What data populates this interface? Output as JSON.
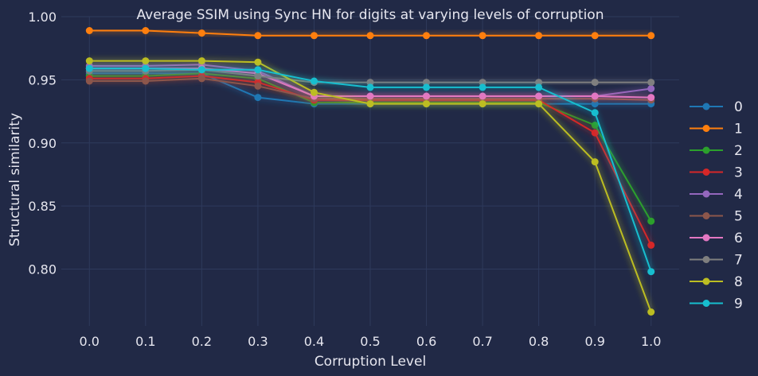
{
  "chart_data": {
    "type": "line",
    "title": "Average SSIM using Sync HN for digits at varying levels of corruption",
    "xlabel": "Corruption Level",
    "ylabel": "Structural similarity",
    "x": [
      0.0,
      0.1,
      0.2,
      0.3,
      0.4,
      0.5,
      0.6,
      0.7,
      0.8,
      0.9,
      1.0
    ],
    "x_tick_labels": [
      "0.0",
      "0.1",
      "0.2",
      "0.3",
      "0.4",
      "0.5",
      "0.6",
      "0.7",
      "0.8",
      "0.9",
      "1.0"
    ],
    "xlim": [
      -0.05,
      1.05
    ],
    "ylim": [
      0.755,
      1.0
    ],
    "y_ticks": [
      0.8,
      0.85,
      0.9,
      0.95,
      1.0
    ],
    "y_tick_labels": [
      "0.80",
      "0.85",
      "0.90",
      "0.95",
      "1.00"
    ],
    "grid": true,
    "legend_position": "right",
    "series": [
      {
        "name": "0",
        "color": "#1f77b4",
        "values": [
          0.955,
          0.955,
          0.955,
          0.936,
          0.931,
          0.931,
          0.931,
          0.931,
          0.931,
          0.931,
          0.931
        ]
      },
      {
        "name": "1",
        "color": "#ff7f0e",
        "values": [
          0.989,
          0.989,
          0.987,
          0.985,
          0.985,
          0.985,
          0.985,
          0.985,
          0.985,
          0.985,
          0.985
        ]
      },
      {
        "name": "2",
        "color": "#2ca02c",
        "values": [
          0.953,
          0.953,
          0.955,
          0.951,
          0.932,
          0.932,
          0.932,
          0.932,
          0.932,
          0.914,
          0.838
        ]
      },
      {
        "name": "3",
        "color": "#d62728",
        "values": [
          0.951,
          0.951,
          0.953,
          0.948,
          0.934,
          0.934,
          0.934,
          0.934,
          0.934,
          0.908,
          0.819
        ]
      },
      {
        "name": "4",
        "color": "#9467bd",
        "values": [
          0.961,
          0.961,
          0.962,
          0.957,
          0.937,
          0.937,
          0.937,
          0.937,
          0.937,
          0.937,
          0.943
        ]
      },
      {
        "name": "5",
        "color": "#8c564b",
        "values": [
          0.949,
          0.949,
          0.951,
          0.945,
          0.935,
          0.935,
          0.935,
          0.935,
          0.935,
          0.935,
          0.934
        ]
      },
      {
        "name": "6",
        "color": "#e377c2",
        "values": [
          0.959,
          0.959,
          0.959,
          0.955,
          0.937,
          0.937,
          0.937,
          0.937,
          0.937,
          0.937,
          0.936
        ]
      },
      {
        "name": "7",
        "color": "#7f7f7f",
        "values": [
          0.957,
          0.957,
          0.958,
          0.953,
          0.948,
          0.948,
          0.948,
          0.948,
          0.948,
          0.948,
          0.948
        ]
      },
      {
        "name": "8",
        "color": "#bcbd22",
        "values": [
          0.965,
          0.965,
          0.965,
          0.964,
          0.94,
          0.931,
          0.931,
          0.931,
          0.931,
          0.885,
          0.766
        ]
      },
      {
        "name": "9",
        "color": "#17becf",
        "values": [
          0.959,
          0.959,
          0.958,
          0.958,
          0.949,
          0.944,
          0.944,
          0.944,
          0.944,
          0.924,
          0.798
        ]
      }
    ]
  }
}
